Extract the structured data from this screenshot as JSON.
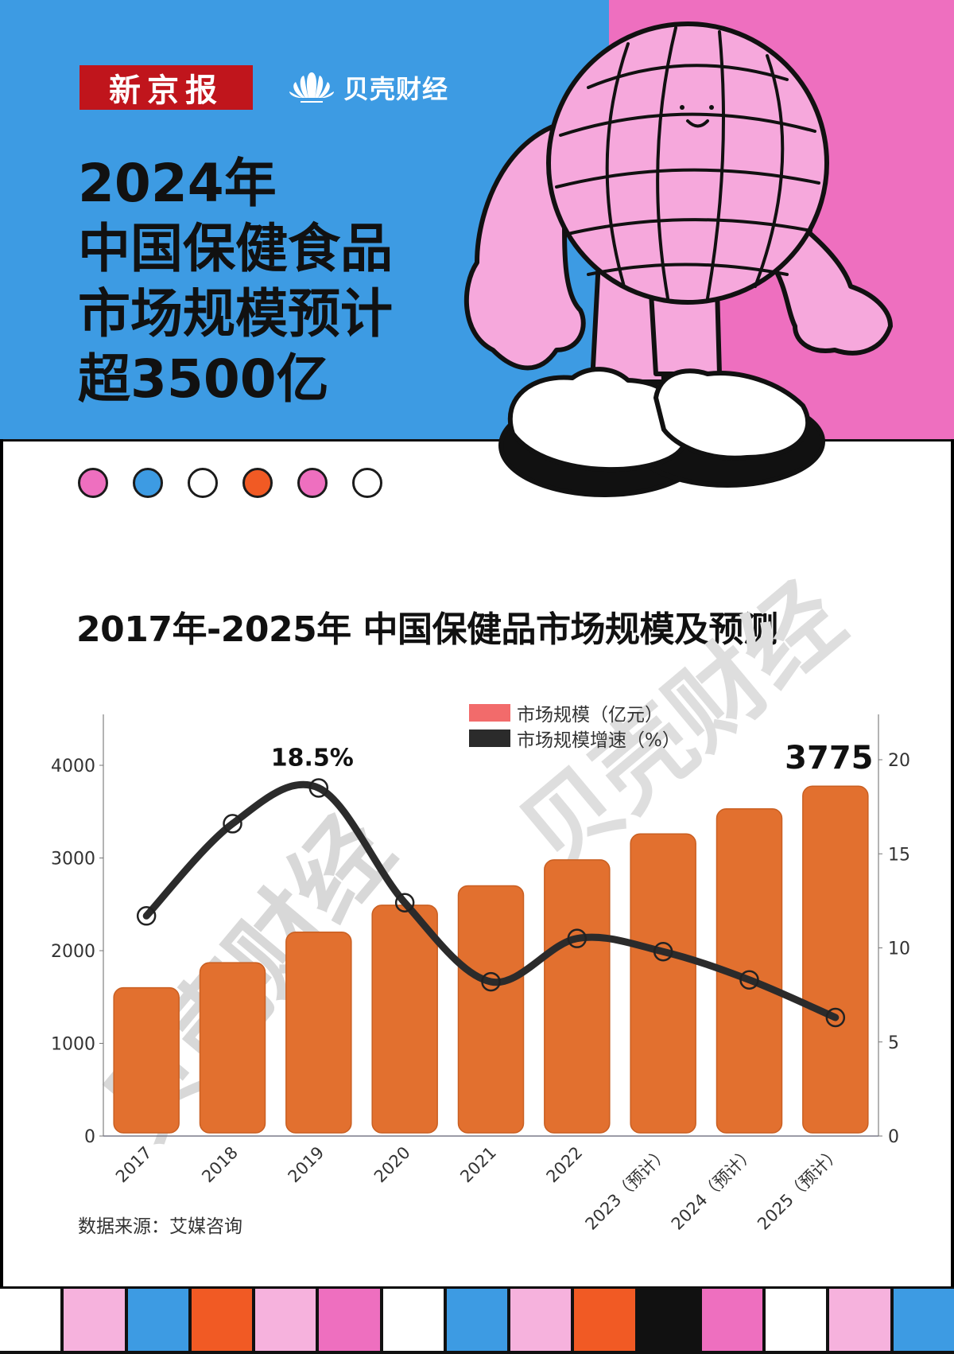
{
  "header": {
    "logo_primary": "新京报",
    "logo_secondary": "贝壳财经",
    "headline_lines": [
      "2024年",
      "中国保健食品",
      "市场规模预计",
      "超3500亿"
    ]
  },
  "decor": {
    "dots": [
      "#ee6fbf",
      "#3d9be3",
      "#ffffff",
      "#f15a24",
      "#ee6fbf",
      "#ffffff"
    ],
    "stripes": [
      "#ffffff",
      "#f6b2dd",
      "#3d9be3",
      "#f15a24",
      "#f6b2dd",
      "#ee6fbf",
      "#ffffff",
      "#3d9be3",
      "#f6b2dd",
      "#f15a24",
      "#111111",
      "#ee6fbf",
      "#ffffff",
      "#f6b2dd",
      "#3d9be3"
    ],
    "colors": {
      "blue": "#3d9be3",
      "pink": "#ee6fbf",
      "light_pink": "#f6a8dc",
      "bar": "#e2702f",
      "line": "#2b2b2b",
      "legend_bar": "#f26b6b"
    }
  },
  "chart": {
    "title": "2017年-2025年 中国保健品市场规模及预测",
    "legend": [
      {
        "label": "市场规模（亿元）",
        "color": "#f26b6b"
      },
      {
        "label": "市场规模增速（%）",
        "color": "#2b2b2b"
      }
    ],
    "peak_label": "18.5%",
    "last_bar_label": "3775",
    "left_ticks": [
      "0",
      "1000",
      "2000",
      "3000",
      "4000"
    ],
    "right_ticks": [
      "0",
      "5",
      "10",
      "15",
      "20"
    ],
    "watermark": "贝壳财经",
    "source": "数据来源：艾媒咨询"
  },
  "chart_data": {
    "type": "bar",
    "title": "2017年-2025年 中国保健品市场规模及预测",
    "categories": [
      "2017",
      "2018",
      "2019",
      "2020",
      "2021",
      "2022",
      "2023（预计）",
      "2024（预计）",
      "2025（预计）"
    ],
    "series": [
      {
        "name": "市场规模（亿元）",
        "type": "bar",
        "axis": "left",
        "values": [
          1600,
          1870,
          2200,
          2490,
          2700,
          2980,
          3260,
          3530,
          3775
        ]
      },
      {
        "name": "市场规模增速（%）",
        "type": "line",
        "axis": "right",
        "values": [
          11.7,
          16.6,
          18.5,
          12.4,
          8.2,
          10.5,
          9.8,
          8.3,
          6.3
        ]
      }
    ],
    "annotations": [
      {
        "text": "18.5%",
        "category": "2019",
        "series": "市场规模增速（%）"
      },
      {
        "text": "3775",
        "category": "2025（预计）",
        "series": "市场规模（亿元）"
      }
    ],
    "xlabel": "",
    "ylabel": "",
    "ylim": [
      0,
      4500
    ],
    "y2lim": [
      0,
      22
    ],
    "left_ticks": [
      0,
      1000,
      2000,
      3000,
      4000
    ],
    "right_ticks": [
      0,
      5,
      10,
      15,
      20
    ],
    "grid": false,
    "legend_position": "top-center-right",
    "source": "数据来源：艾媒咨询"
  }
}
